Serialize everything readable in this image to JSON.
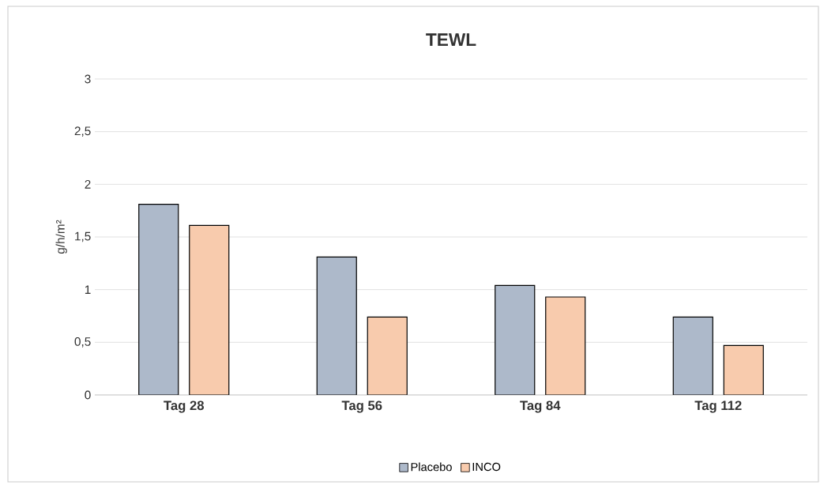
{
  "chart_data": {
    "type": "bar",
    "title": "TEWL",
    "ylabel": "g/h/m²",
    "categories": [
      "Tag 28",
      "Tag 56",
      "Tag 84",
      "Tag 112"
    ],
    "series": [
      {
        "name": "Placebo",
        "color": "#adb9ca",
        "values": [
          1.81,
          1.31,
          1.04,
          0.74
        ]
      },
      {
        "name": "INCO",
        "color": "#f8cbad",
        "values": [
          1.61,
          0.74,
          0.93,
          0.47
        ]
      }
    ],
    "ylim": [
      0,
      3
    ],
    "yticks": [
      0,
      {
        "value": 0.5,
        "label": "0,5"
      },
      1,
      {
        "value": 1.5,
        "label": "1,5"
      },
      2,
      {
        "value": 2.5,
        "label": "2,5"
      },
      3
    ],
    "grid": "y",
    "legend": "bottom"
  }
}
